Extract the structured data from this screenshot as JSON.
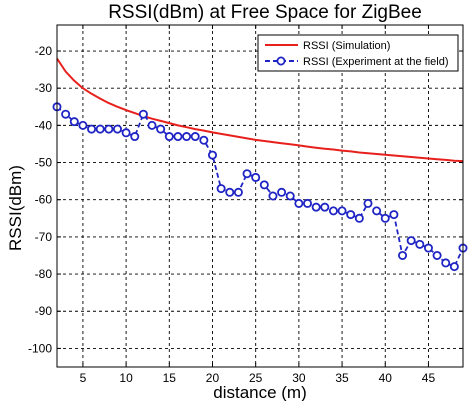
{
  "chart_data": {
    "type": "line",
    "title": "RSSI(dBm) at Free Space for ZigBee",
    "xlabel": "distance (m)",
    "ylabel": "RSSI(dBm)",
    "xlim": [
      2,
      49
    ],
    "ylim": [
      -105,
      -13
    ],
    "xticks": [
      5,
      10,
      15,
      20,
      25,
      30,
      35,
      40,
      45
    ],
    "yticks": [
      -20,
      -30,
      -40,
      -50,
      -60,
      -70,
      -80,
      -90,
      -100
    ],
    "grid": true,
    "legend_position": "top-right",
    "series": [
      {
        "name": "RSSI (Simulation)",
        "color": "#e8201c",
        "style": "solid",
        "marker": "none",
        "x": [
          2,
          3,
          4,
          5,
          6,
          7,
          8,
          9,
          10,
          11,
          12,
          13,
          14,
          15,
          16,
          17,
          18,
          19,
          20,
          21,
          22,
          23,
          24,
          25,
          26,
          27,
          28,
          29,
          30,
          31,
          32,
          33,
          34,
          35,
          36,
          37,
          38,
          39,
          40,
          41,
          42,
          43,
          44,
          45,
          46,
          47,
          48,
          49
        ],
        "y": [
          -22,
          -25.5,
          -28,
          -30,
          -31.5,
          -32.8,
          -34,
          -35,
          -35.9,
          -36.7,
          -37.5,
          -38.2,
          -38.8,
          -39.4,
          -40,
          -40.5,
          -41,
          -41.4,
          -41.9,
          -42.3,
          -42.7,
          -43.1,
          -43.5,
          -43.9,
          -44.2,
          -44.5,
          -44.8,
          -45.1,
          -45.4,
          -45.7,
          -46,
          -46.3,
          -46.5,
          -46.8,
          -47,
          -47.3,
          -47.5,
          -47.7,
          -47.9,
          -48.1,
          -48.3,
          -48.5,
          -48.7,
          -48.9,
          -49.1,
          -49.3,
          -49.5,
          -49.6
        ]
      },
      {
        "name": "RSSI (Experiment at the field)",
        "color": "#1f24c4",
        "style": "dashed",
        "marker": "circle",
        "x": [
          2,
          3,
          4,
          5,
          6,
          7,
          8,
          9,
          10,
          11,
          12,
          13,
          14,
          15,
          16,
          17,
          18,
          19,
          20,
          21,
          22,
          23,
          24,
          25,
          26,
          27,
          28,
          29,
          30,
          31,
          32,
          33,
          34,
          35,
          36,
          37,
          38,
          39,
          40,
          41,
          42,
          43,
          44,
          45,
          46,
          47,
          48,
          49
        ],
        "y": [
          -35,
          -37,
          -39,
          -40,
          -41,
          -41,
          -41,
          -41,
          -42,
          -43,
          -37,
          -40,
          -41,
          -43,
          -43,
          -43,
          -43,
          -44,
          -48,
          -57,
          -58,
          -58,
          -53,
          -54,
          -56,
          -59,
          -58,
          -59,
          -61,
          -61,
          -62,
          -62,
          -63,
          -63,
          -64,
          -65,
          -61,
          -63,
          -65,
          -64,
          -75,
          -71,
          -72,
          -73,
          -75,
          -77,
          -78,
          -73
        ]
      }
    ]
  }
}
